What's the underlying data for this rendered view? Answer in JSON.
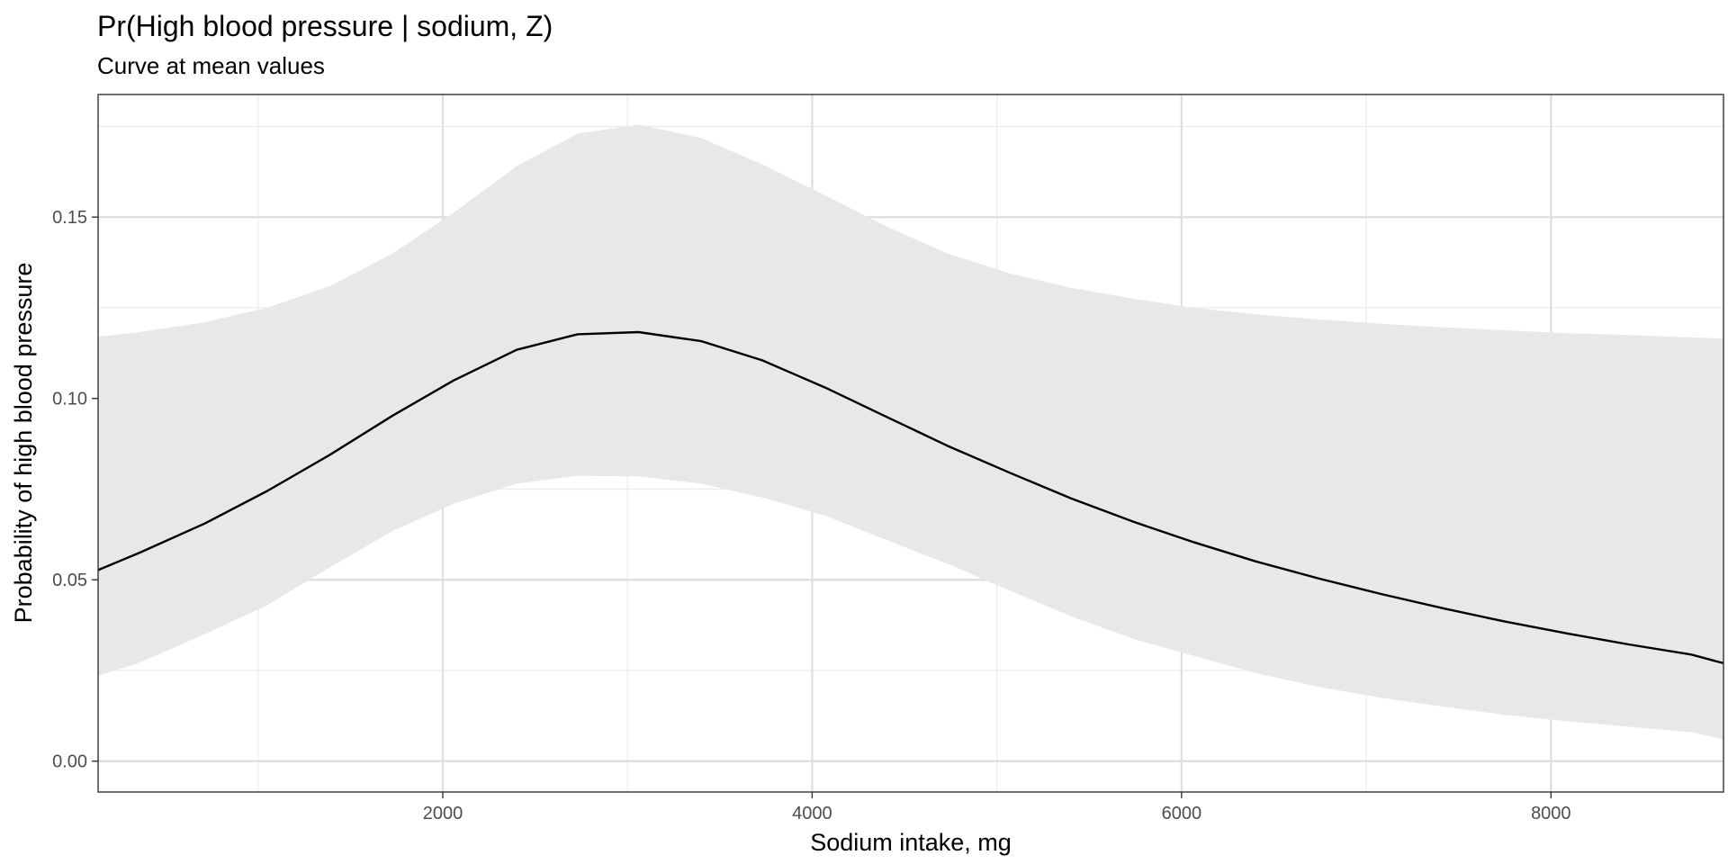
{
  "chart_data": {
    "type": "line",
    "title": "Pr(High blood pressure | sodium, Z)",
    "subtitle": "Curve at mean values",
    "xlabel": "Sodium intake, mg",
    "ylabel": "Probability of high blood pressure",
    "xlim": [
      134,
      8934
    ],
    "ylim": [
      -0.0085,
      0.1838
    ],
    "x_ticks": [
      2000,
      4000,
      6000,
      8000
    ],
    "x_tick_labels": [
      "2000",
      "4000",
      "6000",
      "8000"
    ],
    "x_minor_ticks": [
      1000,
      3000,
      5000,
      7000
    ],
    "y_ticks": [
      0,
      0.05,
      0.1,
      0.15
    ],
    "y_tick_labels": [
      "0.00",
      "0.05",
      "0.10",
      "0.15"
    ],
    "y_minor_ticks": [
      0.025,
      0.075,
      0.125,
      0.175
    ],
    "grid": true,
    "series": [
      {
        "color": "#000000",
        "band_color": "#e8e8e8",
        "x": [
          134,
          360,
          710,
          1050,
          1390,
          1730,
          2060,
          2400,
          2730,
          3060,
          3400,
          3730,
          4070,
          4400,
          4730,
          5070,
          5400,
          5740,
          6070,
          6400,
          6740,
          7080,
          7420,
          7750,
          8090,
          8420,
          8760,
          8934
        ],
        "y": [
          0.0527,
          0.0575,
          0.0655,
          0.0745,
          0.0845,
          0.0953,
          0.105,
          0.1134,
          0.1177,
          0.1183,
          0.1158,
          0.1105,
          0.103,
          0.095,
          0.087,
          0.0795,
          0.0725,
          0.066,
          0.0603,
          0.0551,
          0.0504,
          0.0461,
          0.0421,
          0.0385,
          0.0352,
          0.0322,
          0.0294,
          0.027
        ],
        "lower": [
          0.0235,
          0.0272,
          0.035,
          0.043,
          0.0535,
          0.0635,
          0.071,
          0.0765,
          0.0787,
          0.0785,
          0.0765,
          0.0727,
          0.0677,
          0.061,
          0.0545,
          0.047,
          0.04,
          0.0337,
          0.029,
          0.0243,
          0.0205,
          0.0175,
          0.015,
          0.0128,
          0.011,
          0.0095,
          0.008,
          0.006
        ],
        "upper": [
          0.117,
          0.1183,
          0.121,
          0.125,
          0.131,
          0.14,
          0.1513,
          0.164,
          0.173,
          0.1755,
          0.1718,
          0.1645,
          0.156,
          0.1475,
          0.14,
          0.1345,
          0.1305,
          0.1275,
          0.125,
          0.1232,
          0.1218,
          0.1206,
          0.1196,
          0.1188,
          0.118,
          0.1175,
          0.1168,
          0.1165
        ]
      }
    ]
  }
}
